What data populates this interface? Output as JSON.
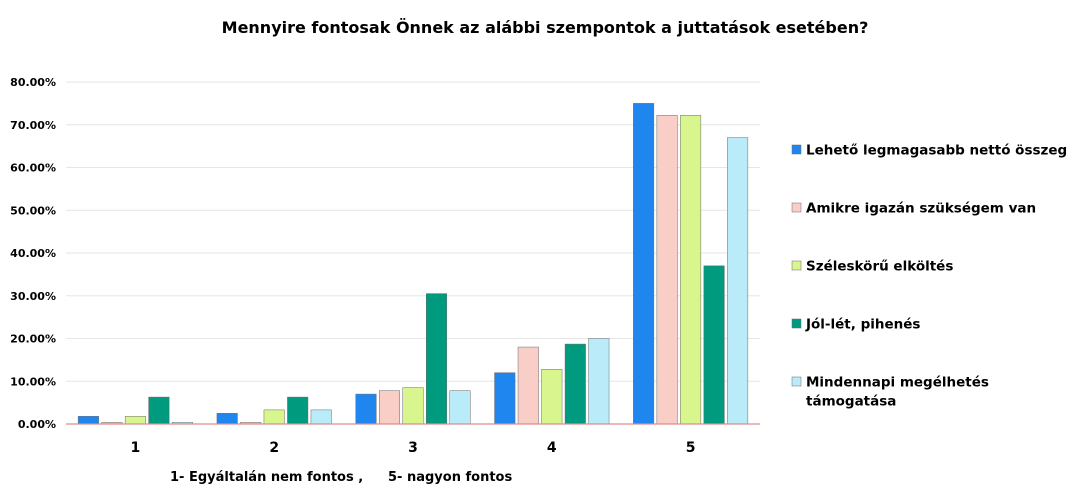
{
  "chart_data": {
    "type": "bar",
    "title": "Mennyire fontosak Önnek az alábbi szempontok a juttatások esetében?",
    "categories": [
      "1",
      "2",
      "3",
      "4",
      "5"
    ],
    "note_left": "1- Egyáltalán nem fontos ,",
    "note_right": "5- nagyon fontos",
    "ylim": [
      0,
      0.8
    ],
    "yticks": [
      "0.00%",
      "10.00%",
      "20.00%",
      "30.00%",
      "40.00%",
      "50.00%",
      "60.00%",
      "70.00%",
      "80.00%"
    ],
    "grid": true,
    "legend_position": "right",
    "series": [
      {
        "name": "Lehető legmagasabb nettó összeg",
        "color": "#1F86F0",
        "values": [
          0.018,
          0.025,
          0.07,
          0.12,
          0.75
        ]
      },
      {
        "name": "Amikre igazán szükségem van",
        "color": "#F9CEC6",
        "values": [
          0.004,
          0.004,
          0.078,
          0.18,
          0.722
        ]
      },
      {
        "name": "Széleskörű elköltés",
        "color": "#D9F58E",
        "values": [
          0.018,
          0.033,
          0.085,
          0.128,
          0.722
        ]
      },
      {
        "name": "Jól-lét, pihenés",
        "color": "#009A7E",
        "values": [
          0.063,
          0.063,
          0.305,
          0.187,
          0.37
        ]
      },
      {
        "name": "Mindennapi megélhetés támogatása",
        "legend_lines": [
          "Mindennapi megélhetés",
          "támogatása"
        ],
        "color": "#B9ECF8",
        "values": [
          0.004,
          0.033,
          0.078,
          0.2,
          0.67
        ]
      }
    ]
  }
}
